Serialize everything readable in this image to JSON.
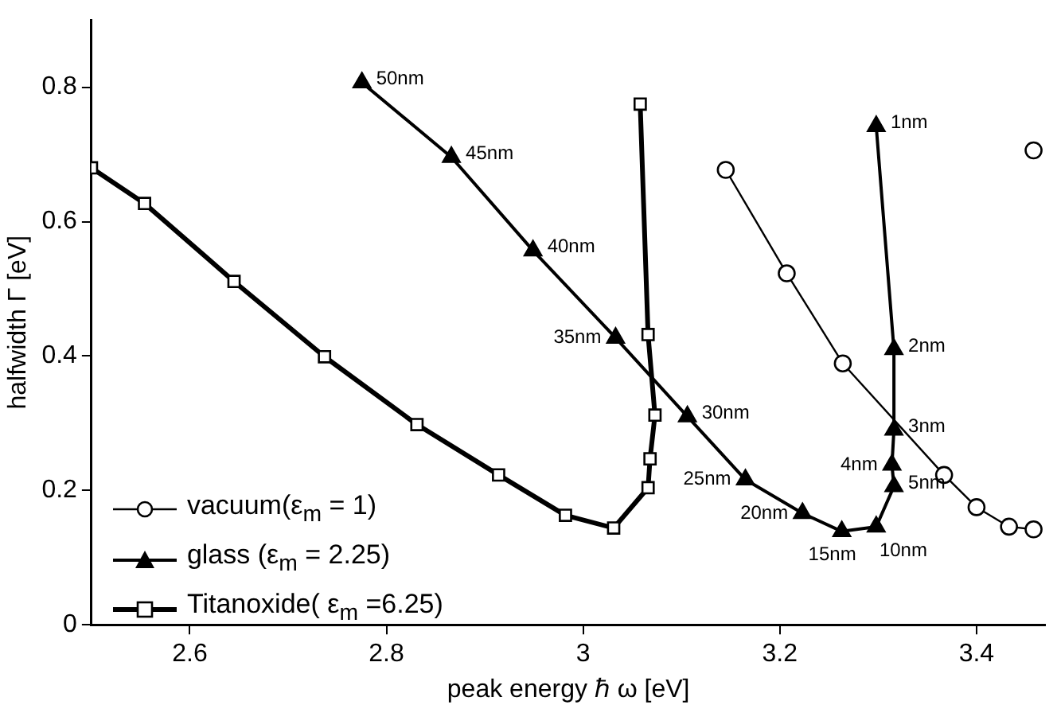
{
  "chart_data": {
    "type": "line",
    "xlabel": "peak energy ℏ ω [eV]",
    "ylabel": "halfwidth Γ [eV]",
    "xlim": [
      2.5,
      3.47
    ],
    "xticks": [
      2.6,
      2.8,
      {
        "value": 3.0,
        "label": "3"
      },
      3.2,
      3.4
    ],
    "ylim": [
      0,
      0.9
    ],
    "yticks": [
      0,
      0.2,
      0.4,
      0.6,
      0.8
    ],
    "grid": false,
    "legend": "bottom left",
    "series": [
      {
        "name": "vacuum(ε$_{m}$ = 1)",
        "color": "#000000",
        "marker": "circle",
        "x": [
          3.145,
          3.207,
          3.264,
          3.367,
          3.4,
          3.433,
          3.458
        ],
        "values": [
          0.677,
          0.523,
          0.389,
          0.223,
          0.175,
          0.146,
          0.142
        ]
      },
      {
        "color": "#000000",
        "marker": "circle",
        "x": [
          3.458
        ],
        "values": [
          0.706
        ]
      },
      {
        "name": "glass (ε$_{m}$ = 2.25)",
        "color": "#000000",
        "marker": "triangle",
        "x": [
          2.775,
          2.866,
          2.949,
          3.033,
          3.106,
          3.165,
          3.223,
          3.263,
          3.298,
          3.316,
          3.314,
          3.316,
          3.316,
          3.298
        ],
        "values": [
          0.807,
          0.696,
          0.557,
          0.427,
          0.31,
          0.216,
          0.166,
          0.139,
          0.146,
          0.206,
          0.238,
          0.29,
          0.41,
          0.742
        ]
      },
      {
        "name": "Titanoxide( ε$_{m}$ =6.25)",
        "color": "#000000",
        "marker": "square",
        "x": [
          2.5,
          2.554,
          2.645,
          2.737,
          2.831,
          2.914,
          2.982,
          3.031,
          3.066,
          3.068,
          3.073,
          3.066,
          3.058
        ],
        "values": [
          0.68,
          0.627,
          0.511,
          0.399,
          0.298,
          0.223,
          0.163,
          0.144,
          0.204,
          0.247,
          0.312,
          0.432,
          0.775
        ]
      }
    ],
    "annotations": [
      {
        "text": "50nm",
        "x": 2.775,
        "y": 0.807
      },
      {
        "text": "45nm",
        "x": 2.866,
        "y": 0.696
      },
      {
        "text": "40nm",
        "x": 2.949,
        "y": 0.557
      },
      {
        "text": "35nm",
        "x": 3.033,
        "y": 0.427
      },
      {
        "text": "30nm",
        "x": 3.106,
        "y": 0.31
      },
      {
        "text": "25nm",
        "x": 3.165,
        "y": 0.216
      },
      {
        "text": "20nm",
        "x": 3.223,
        "y": 0.166
      },
      {
        "text": "15nm",
        "x": 3.263,
        "y": 0.139
      },
      {
        "text": "10nm",
        "x": 3.298,
        "y": 0.146
      },
      {
        "text": "5nm",
        "x": 3.316,
        "y": 0.206
      },
      {
        "text": "4nm",
        "x": 3.314,
        "y": 0.238
      },
      {
        "text": "3nm",
        "x": 3.316,
        "y": 0.29
      },
      {
        "text": "2nm",
        "x": 3.316,
        "y": 0.41
      },
      {
        "text": "1nm",
        "x": 3.298,
        "y": 0.742
      }
    ]
  }
}
